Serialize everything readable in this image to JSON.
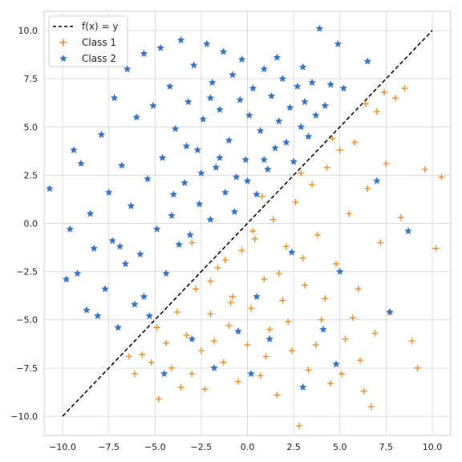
{
  "chart_data": {
    "type": "scatter",
    "title": "",
    "xlabel": "",
    "ylabel": "",
    "xlim": [
      -11,
      11
    ],
    "ylim": [
      -11,
      11
    ],
    "x_ticks": [
      -10.0,
      -7.5,
      -5.0,
      -2.5,
      0.0,
      2.5,
      5.0,
      7.5,
      10.0
    ],
    "y_ticks": [
      -10.0,
      -7.5,
      -5.0,
      -2.5,
      0.0,
      2.5,
      5.0,
      7.5,
      10.0
    ],
    "x_tick_labels": [
      "−10.0",
      "−7.5",
      "−5.0",
      "−2.5",
      "0.0",
      "2.5",
      "5.0",
      "7.5",
      "10.0"
    ],
    "y_tick_labels": [
      "−10.0",
      "−7.5",
      "−5.0",
      "−2.5",
      "0.0",
      "2.5",
      "5.0",
      "7.5",
      "10.0"
    ],
    "grid": true,
    "legend_position": "top-left",
    "line": {
      "name": "f(x) = y",
      "x": [
        -10,
        10
      ],
      "y": [
        -10,
        10
      ],
      "color": "#000000",
      "style": "dashed"
    },
    "series": [
      {
        "name": "Class 1",
        "marker": "plus",
        "color": "#f28e2b",
        "points": [
          [
            -6.4,
            -6.9
          ],
          [
            -6.1,
            -7.8
          ],
          [
            -5.7,
            -6.8
          ],
          [
            -5.2,
            -7.2
          ],
          [
            -4.9,
            -5.4
          ],
          [
            -4.8,
            -9.1
          ],
          [
            -4.4,
            -6.2
          ],
          [
            -4.1,
            -7.5
          ],
          [
            -3.8,
            -4.6
          ],
          [
            -3.6,
            -8.5
          ],
          [
            -3.3,
            -5.8
          ],
          [
            -3.0,
            -7.8
          ],
          [
            -2.8,
            -3.4
          ],
          [
            -2.5,
            -6.6
          ],
          [
            -2.3,
            -8.6
          ],
          [
            -2.0,
            -4.7
          ],
          [
            -1.8,
            -6.1
          ],
          [
            -1.6,
            -2.3
          ],
          [
            -1.3,
            -7.2
          ],
          [
            -1.0,
            -5.3
          ],
          [
            -0.8,
            -3.8
          ],
          [
            -0.5,
            -8.2
          ],
          [
            -0.3,
            -1.4
          ],
          [
            0.0,
            -6.3
          ],
          [
            0.2,
            -4.4
          ],
          [
            0.4,
            -0.8
          ],
          [
            0.7,
            -7.9
          ],
          [
            0.9,
            -2.9
          ],
          [
            1.2,
            -5.5
          ],
          [
            1.4,
            0.2
          ],
          [
            1.6,
            -8.9
          ],
          [
            1.9,
            -4.0
          ],
          [
            2.1,
            -1.2
          ],
          [
            2.4,
            -6.6
          ],
          [
            2.6,
            1.1
          ],
          [
            2.8,
            -10.5
          ],
          [
            3.1,
            -3.2
          ],
          [
            3.3,
            -7.6
          ],
          [
            3.5,
            2.0
          ],
          [
            3.8,
            -0.6
          ],
          [
            4.0,
            -5.0
          ],
          [
            4.3,
            2.9
          ],
          [
            4.5,
            -8.3
          ],
          [
            4.8,
            -2.1
          ],
          [
            5.0,
            3.8
          ],
          [
            5.3,
            -6.0
          ],
          [
            5.5,
            0.5
          ],
          [
            5.8,
            4.2
          ],
          [
            6.0,
            -3.4
          ],
          [
            6.3,
            -8.7
          ],
          [
            6.5,
            1.8
          ],
          [
            6.7,
            -9.5
          ],
          [
            7.0,
            5.8
          ],
          [
            7.2,
            -1.0
          ],
          [
            7.5,
            3.1
          ],
          [
            7.7,
            -4.6
          ],
          [
            8.0,
            6.5
          ],
          [
            8.3,
            0.3
          ],
          [
            8.5,
            7.0
          ],
          [
            8.9,
            -6.1
          ],
          [
            9.2,
            -7.5
          ],
          [
            9.6,
            2.8
          ],
          [
            10.2,
            -1.3
          ],
          [
            10.5,
            2.4
          ],
          [
            -3.0,
            -1.0
          ],
          [
            -1.2,
            -1.9
          ],
          [
            0.3,
            -0.4
          ],
          [
            1.7,
            -2.6
          ],
          [
            3.0,
            -1.8
          ],
          [
            4.2,
            -3.9
          ],
          [
            5.7,
            -4.9
          ],
          [
            6.9,
            -5.7
          ],
          [
            2.2,
            -5.1
          ],
          [
            -0.9,
            -4.1
          ],
          [
            1.0,
            -6.9
          ],
          [
            3.7,
            -6.3
          ],
          [
            5.1,
            -7.8
          ],
          [
            6.1,
            -7.1
          ],
          [
            -2.0,
            -3.0
          ],
          [
            0.8,
            1.4
          ],
          [
            2.9,
            2.6
          ],
          [
            4.6,
            4.4
          ],
          [
            6.4,
            6.2
          ],
          [
            7.4,
            6.8
          ]
        ]
      },
      {
        "name": "Class 2",
        "marker": "star",
        "color": "#3a75c4",
        "points": [
          [
            -10.7,
            1.8
          ],
          [
            -9.8,
            -2.9
          ],
          [
            -9.6,
            -0.3
          ],
          [
            -9.4,
            3.8
          ],
          [
            -9.2,
            -2.6
          ],
          [
            -9.0,
            3.1
          ],
          [
            -8.7,
            -4.5
          ],
          [
            -8.5,
            0.5
          ],
          [
            -8.3,
            -1.3
          ],
          [
            -8.1,
            -4.8
          ],
          [
            -7.9,
            4.6
          ],
          [
            -7.7,
            -3.4
          ],
          [
            -7.5,
            1.6
          ],
          [
            -7.3,
            -0.9
          ],
          [
            -7.2,
            6.5
          ],
          [
            -7.0,
            -5.4
          ],
          [
            -6.8,
            3.0
          ],
          [
            -6.6,
            -2.1
          ],
          [
            -6.5,
            8.0
          ],
          [
            -6.3,
            0.9
          ],
          [
            -6.1,
            -4.2
          ],
          [
            -6.0,
            5.5
          ],
          [
            -5.8,
            -1.6
          ],
          [
            -5.6,
            8.8
          ],
          [
            -5.4,
            2.3
          ],
          [
            -5.3,
            -4.8
          ],
          [
            -5.1,
            6.1
          ],
          [
            -4.9,
            -0.3
          ],
          [
            -4.7,
            9.1
          ],
          [
            -4.6,
            3.4
          ],
          [
            -4.4,
            -2.6
          ],
          [
            -4.2,
            7.1
          ],
          [
            -4.1,
            0.4
          ],
          [
            -3.9,
            4.9
          ],
          [
            -3.7,
            -1.1
          ],
          [
            -3.6,
            9.5
          ],
          [
            -3.4,
            2.1
          ],
          [
            -3.2,
            6.3
          ],
          [
            -3.1,
            -0.6
          ],
          [
            -2.9,
            8.2
          ],
          [
            -2.7,
            3.8
          ],
          [
            -2.6,
            1.0
          ],
          [
            -2.4,
            5.4
          ],
          [
            -2.2,
            9.3
          ],
          [
            -2.0,
            0.2
          ],
          [
            -1.9,
            7.3
          ],
          [
            -1.7,
            2.9
          ],
          [
            -1.5,
            5.9
          ],
          [
            -1.3,
            8.9
          ],
          [
            -1.2,
            1.6
          ],
          [
            -1.0,
            4.3
          ],
          [
            -0.8,
            7.7
          ],
          [
            -0.6,
            2.4
          ],
          [
            -0.4,
            6.4
          ],
          [
            -0.3,
            8.5
          ],
          [
            -0.1,
            3.3
          ],
          [
            0.1,
            5.6
          ],
          [
            0.3,
            7.0
          ],
          [
            0.5,
            1.5
          ],
          [
            0.7,
            4.8
          ],
          [
            0.9,
            8.0
          ],
          [
            1.1,
            2.8
          ],
          [
            1.3,
            6.6
          ],
          [
            1.5,
            3.9
          ],
          [
            1.7,
            5.3
          ],
          [
            1.9,
            7.5
          ],
          [
            2.1,
            4.2
          ],
          [
            2.3,
            6.0
          ],
          [
            2.5,
            3.2
          ],
          [
            2.7,
            7.1
          ],
          [
            2.9,
            5.0
          ],
          [
            3.1,
            6.3
          ],
          [
            3.3,
            4.5
          ],
          [
            3.5,
            7.3
          ],
          [
            3.7,
            5.6
          ],
          [
            3.9,
            10.1
          ],
          [
            4.2,
            6.1
          ],
          [
            4.5,
            7.2
          ],
          [
            4.9,
            9.3
          ],
          [
            5.2,
            7.0
          ],
          [
            6.5,
            8.4
          ],
          [
            7.0,
            2.2
          ],
          [
            8.7,
            -0.4
          ],
          [
            7.7,
            -4.6
          ],
          [
            5.0,
            -2.5
          ],
          [
            4.8,
            -7.3
          ],
          [
            3.0,
            -8.5
          ],
          [
            1.2,
            -6.0
          ],
          [
            0.5,
            -3.8
          ],
          [
            -0.5,
            -5.6
          ],
          [
            -1.8,
            -7.5
          ],
          [
            -3.0,
            -6.0
          ],
          [
            -4.5,
            -7.8
          ],
          [
            2.4,
            -1.5
          ],
          [
            4.1,
            -5.5
          ],
          [
            0.2,
            -7.8
          ],
          [
            -2.5,
            2.6
          ],
          [
            -5.6,
            -3.8
          ],
          [
            -6.9,
            -1.2
          ],
          [
            -4.0,
            1.5
          ],
          [
            -3.3,
            4.0
          ],
          [
            -2.0,
            6.5
          ],
          [
            1.6,
            8.6
          ],
          [
            3.0,
            8.1
          ],
          [
            -1.5,
            3.4
          ],
          [
            0.0,
            2.2
          ],
          [
            -0.7,
            0.6
          ],
          [
            0.9,
            3.3
          ]
        ]
      }
    ]
  }
}
